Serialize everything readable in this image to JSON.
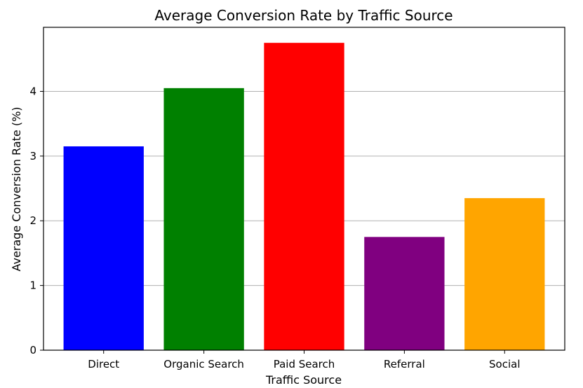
{
  "chart_data": {
    "type": "bar",
    "title": "Average Conversion Rate by Traffic Source",
    "xlabel": "Traffic Source",
    "ylabel": "Average Conversion Rate (%)",
    "categories": [
      "Direct",
      "Organic Search",
      "Paid Search",
      "Referral",
      "Social"
    ],
    "values": [
      3.15,
      4.05,
      4.75,
      1.75,
      2.35
    ],
    "colors": [
      "#0000ff",
      "#008000",
      "#ff0000",
      "#800080",
      "#ffa500"
    ],
    "ylim": [
      0,
      4.99
    ],
    "yticks": [
      0,
      1,
      2,
      3,
      4
    ],
    "ytick_labels": [
      "0",
      "1",
      "2",
      "3",
      "4"
    ],
    "grid": "y-major",
    "legend": "none"
  }
}
